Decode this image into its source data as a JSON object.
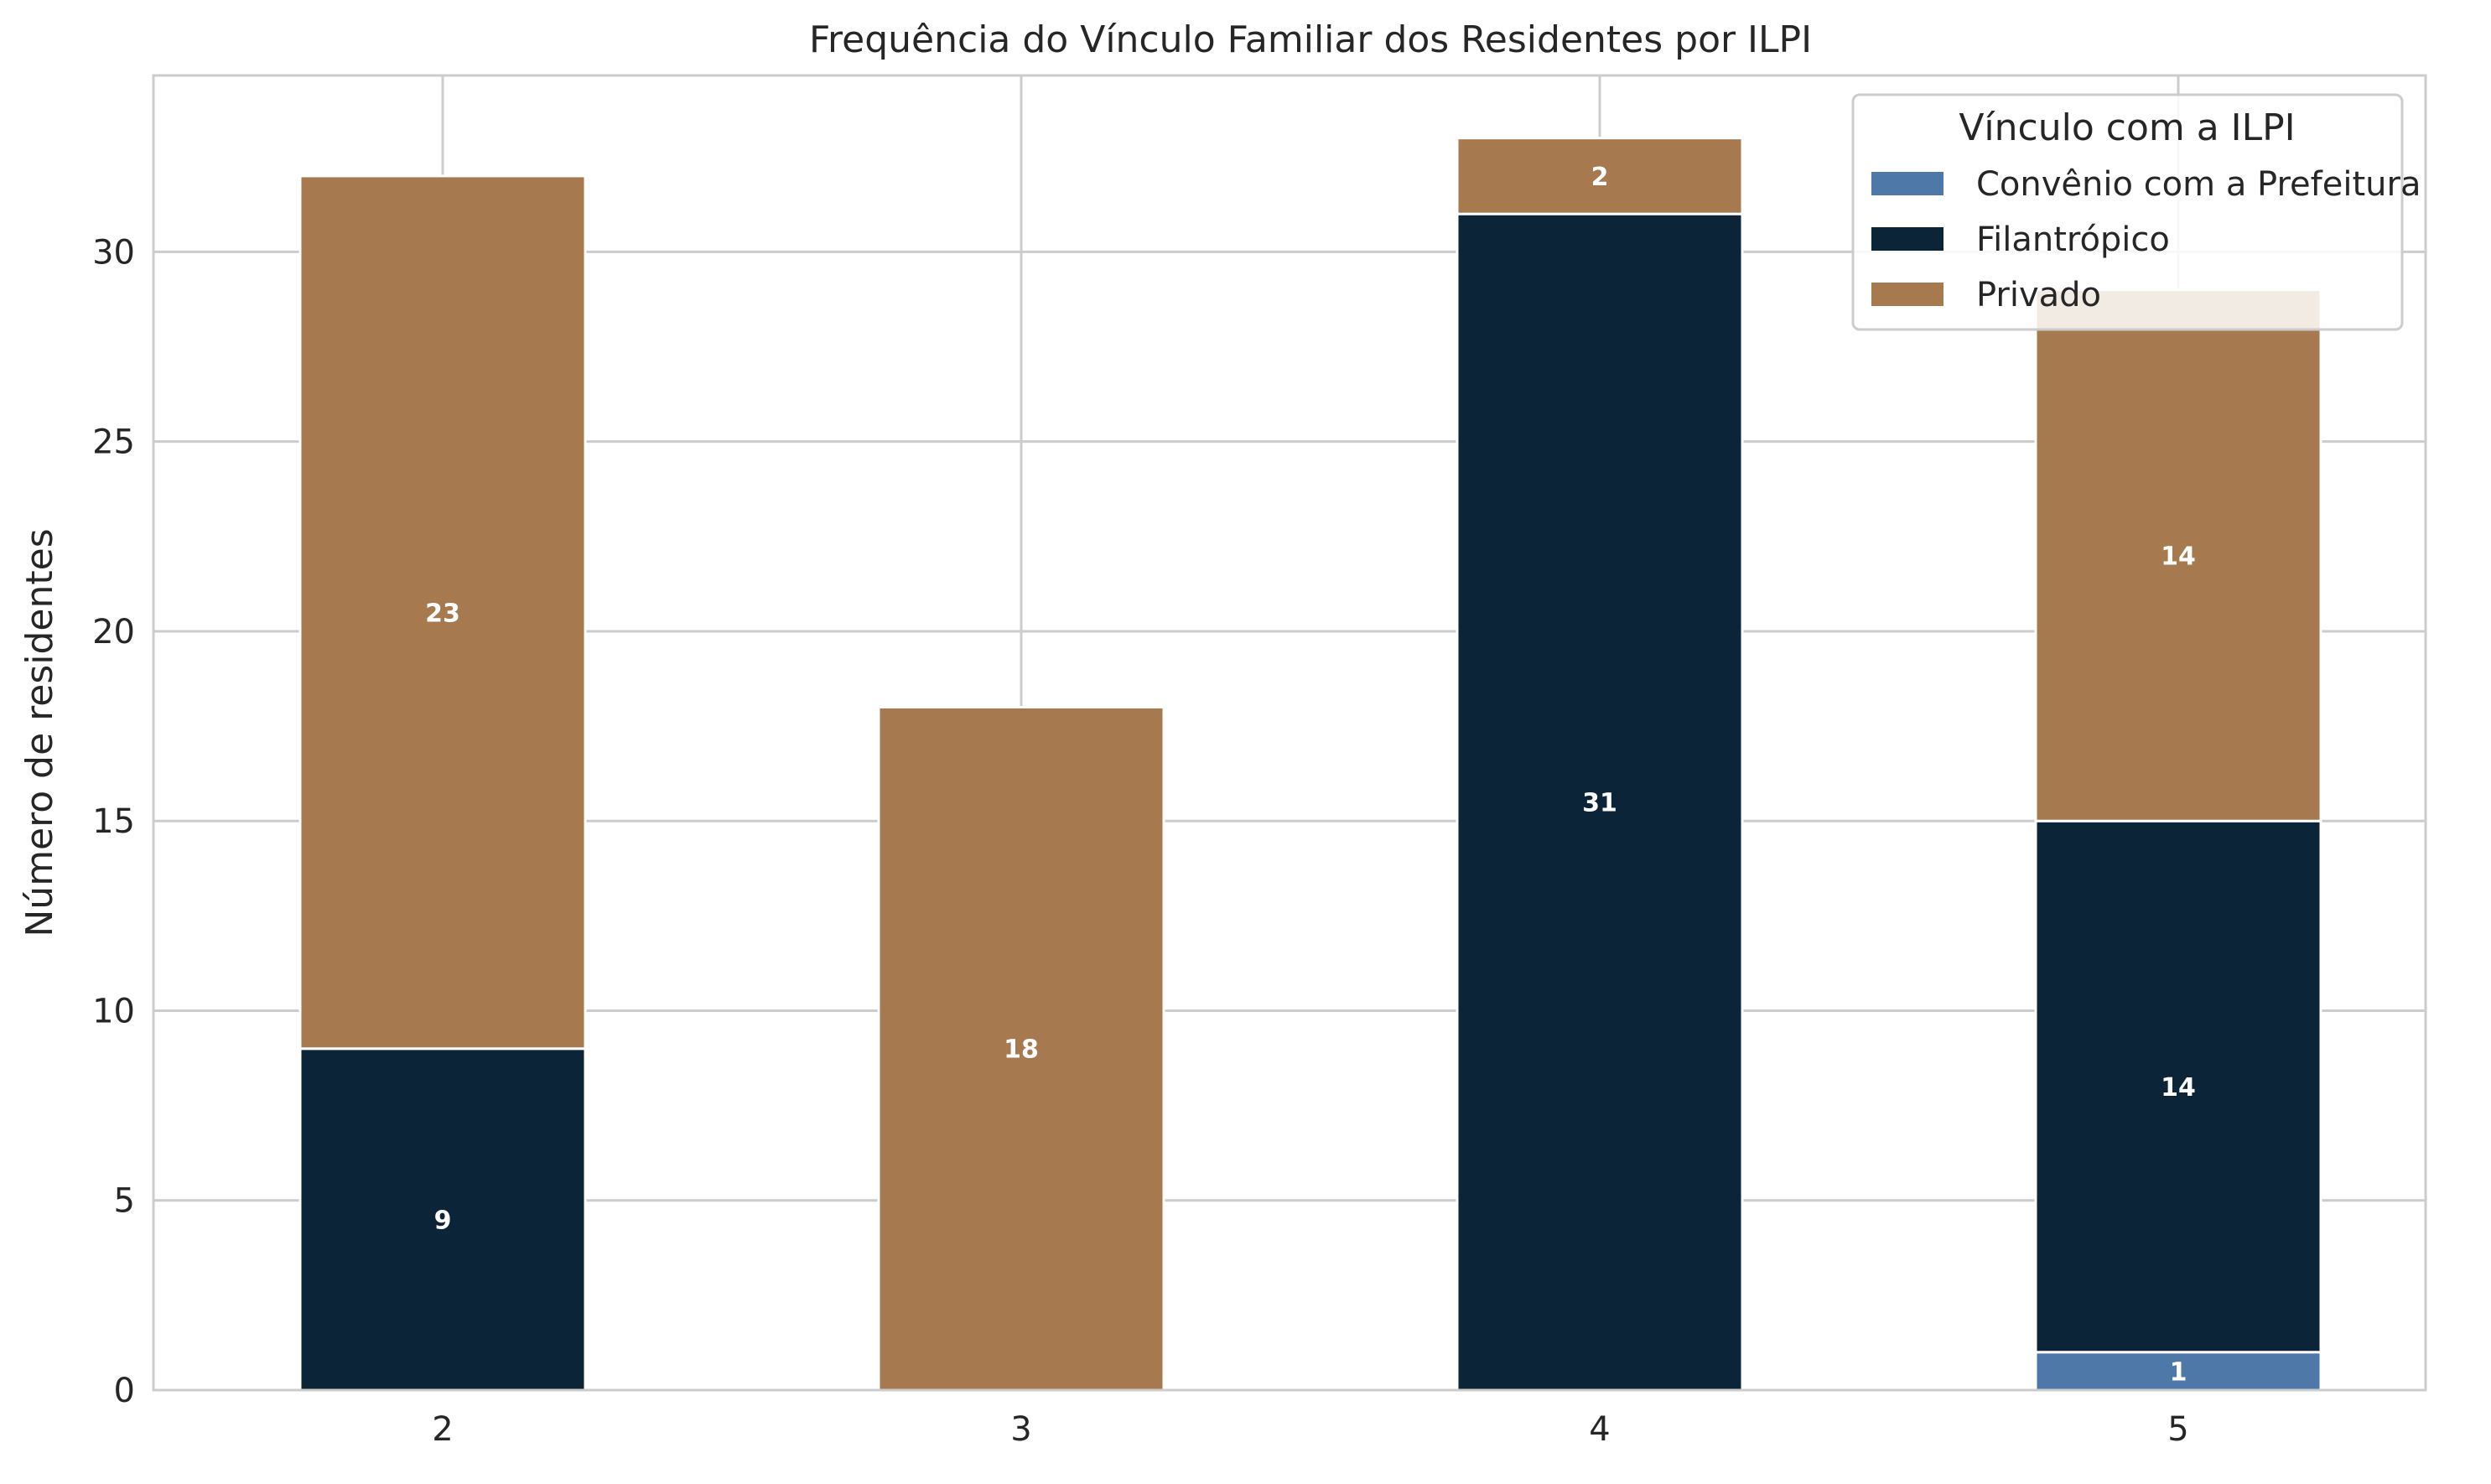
{
  "chart_data": {
    "type": "bar",
    "stacked": true,
    "title": "Frequência do Vínculo Familiar dos Residentes por ILPI",
    "xlabel": "",
    "ylabel": "Número de residentes",
    "categories": [
      "2",
      "3",
      "4",
      "5"
    ],
    "y_ticks": [
      "0",
      "5",
      "10",
      "15",
      "20",
      "25",
      "30"
    ],
    "ylim": [
      0,
      34.65
    ],
    "grid": true,
    "legend_title": "Vínculo com a ILPI",
    "legend_position": "top-right",
    "series": [
      {
        "name": "Convênio com a Prefeitura",
        "color": "#4e78a8",
        "values": [
          0,
          0,
          0,
          1
        ]
      },
      {
        "name": "Filantrópico",
        "color": "#0b2438",
        "values": [
          9,
          0,
          31,
          14
        ]
      },
      {
        "name": "Privado",
        "color": "#a67a4e",
        "values": [
          23,
          18,
          2,
          14
        ]
      }
    ]
  }
}
